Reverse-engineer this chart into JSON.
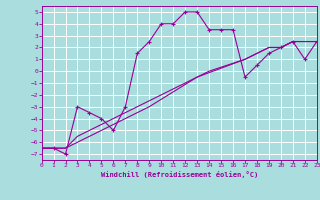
{
  "xlabel": "Windchill (Refroidissement éolien,°C)",
  "xlim": [
    0,
    23
  ],
  "ylim": [
    -7.5,
    5.5
  ],
  "yticks": [
    -7,
    -6,
    -5,
    -4,
    -3,
    -2,
    -1,
    0,
    1,
    2,
    3,
    4,
    5
  ],
  "xticks": [
    0,
    1,
    2,
    3,
    4,
    5,
    6,
    7,
    8,
    9,
    10,
    11,
    12,
    13,
    14,
    15,
    16,
    17,
    18,
    19,
    20,
    21,
    22,
    23
  ],
  "bg_color": "#aadddd",
  "grid_color": "#ffffff",
  "line_color": "#990099",
  "line1_x": [
    0,
    1,
    2,
    3,
    4,
    5,
    6,
    7,
    8,
    9,
    10,
    11,
    12,
    13,
    14,
    15,
    16,
    17,
    18,
    19,
    20,
    21,
    22,
    23
  ],
  "line1_y": [
    -6.5,
    -6.5,
    -7.0,
    -3.0,
    -3.5,
    -4.0,
    -5.0,
    -3.0,
    1.5,
    2.5,
    4.0,
    4.0,
    5.0,
    5.0,
    3.5,
    3.5,
    3.5,
    -0.5,
    0.5,
    1.5,
    2.0,
    2.5,
    1.0,
    2.5
  ],
  "line2_x": [
    0,
    2,
    3,
    4,
    5,
    6,
    11,
    12,
    13,
    14,
    17,
    18,
    19,
    20,
    21,
    22,
    23
  ],
  "line2_y": [
    -6.5,
    -6.5,
    -5.5,
    -5.0,
    -4.5,
    -4.0,
    -1.5,
    -1.0,
    -0.5,
    0.0,
    1.0,
    1.5,
    2.0,
    2.0,
    2.5,
    2.5,
    2.5
  ],
  "line3_x": [
    0,
    2,
    6,
    9,
    13,
    17,
    19,
    20,
    21,
    22,
    23
  ],
  "line3_y": [
    -6.5,
    -6.5,
    -4.5,
    -3.0,
    -0.5,
    1.0,
    2.0,
    2.0,
    2.5,
    2.5,
    2.5
  ]
}
